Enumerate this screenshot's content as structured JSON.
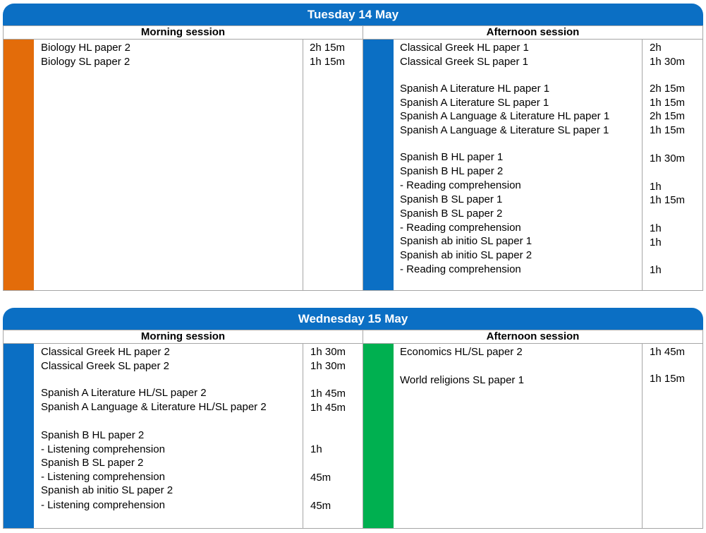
{
  "colors": {
    "header": "#0b6fc4",
    "orange": "#e36c0a",
    "blue": "#0b6fc4",
    "green": "#00b050"
  },
  "days": [
    {
      "title": "Tuesday 14 May",
      "morning": {
        "heading": "Morning session",
        "lines": [
          {
            "subject": "Biology HL paper 2",
            "duration": "2h 15m"
          },
          {
            "subject": "Biology SL paper 2",
            "duration": "1h 15m"
          }
        ]
      },
      "afternoon": {
        "heading": "Afternoon session",
        "lines": [
          {
            "subject": "Classical Greek HL paper 1",
            "duration": "2h"
          },
          {
            "subject": "Classical Greek SL paper 1",
            "duration": "1h 30m"
          },
          {
            "subject": "Spanish A Literature HL paper 1",
            "duration": "2h 15m"
          },
          {
            "subject": "Spanish A Literature SL paper 1",
            "duration": "1h 15m"
          },
          {
            "subject": "Spanish A Language & Literature HL paper 1",
            "duration": "2h 15m"
          },
          {
            "subject": "Spanish A Language & Literature SL paper 1",
            "duration": "1h 15m"
          },
          {
            "subject": "Spanish B HL paper 1",
            "duration": "1h 30m"
          },
          {
            "subject": "Spanish B HL paper 2",
            "duration": ""
          },
          {
            "subject": "- Reading comprehension",
            "duration": "1h"
          },
          {
            "subject": "Spanish B SL paper 1",
            "duration": "1h 15m"
          },
          {
            "subject": "Spanish B SL paper 2",
            "duration": ""
          },
          {
            "subject": "- Reading comprehension",
            "duration": "1h"
          },
          {
            "subject": "Spanish ab initio SL paper 1",
            "duration": "1h"
          },
          {
            "subject": "Spanish ab initio SL paper 2",
            "duration": ""
          },
          {
            "subject": "- Reading comprehension",
            "duration": "1h"
          }
        ]
      }
    },
    {
      "title": "Wednesday 15 May",
      "morning": {
        "heading": "Morning session",
        "lines": [
          {
            "subject": "Classical Greek HL paper 2",
            "duration": "1h 30m"
          },
          {
            "subject": "Classical Greek SL paper 2",
            "duration": "1h 30m"
          },
          {
            "subject": "Spanish A Literature HL/SL paper 2",
            "duration": "1h 45m"
          },
          {
            "subject": "Spanish A Language & Literature HL/SL paper 2",
            "duration": "1h 45m"
          },
          {
            "subject": "Spanish B HL paper 2",
            "duration": ""
          },
          {
            "subject": "- Listening comprehension",
            "duration": "1h"
          },
          {
            "subject": "Spanish B SL paper 2",
            "duration": ""
          },
          {
            "subject": "- Listening comprehension",
            "duration": "45m"
          },
          {
            "subject": "Spanish ab initio SL paper 2",
            "duration": ""
          },
          {
            "subject": "- Listening comprehension",
            "duration": "45m"
          }
        ]
      },
      "afternoon": {
        "heading": "Afternoon session",
        "lines": [
          {
            "subject": "Economics HL/SL paper 2",
            "duration": "1h 45m"
          },
          {
            "subject": "World religions SL paper 1",
            "duration": "1h 15m"
          }
        ]
      }
    }
  ]
}
